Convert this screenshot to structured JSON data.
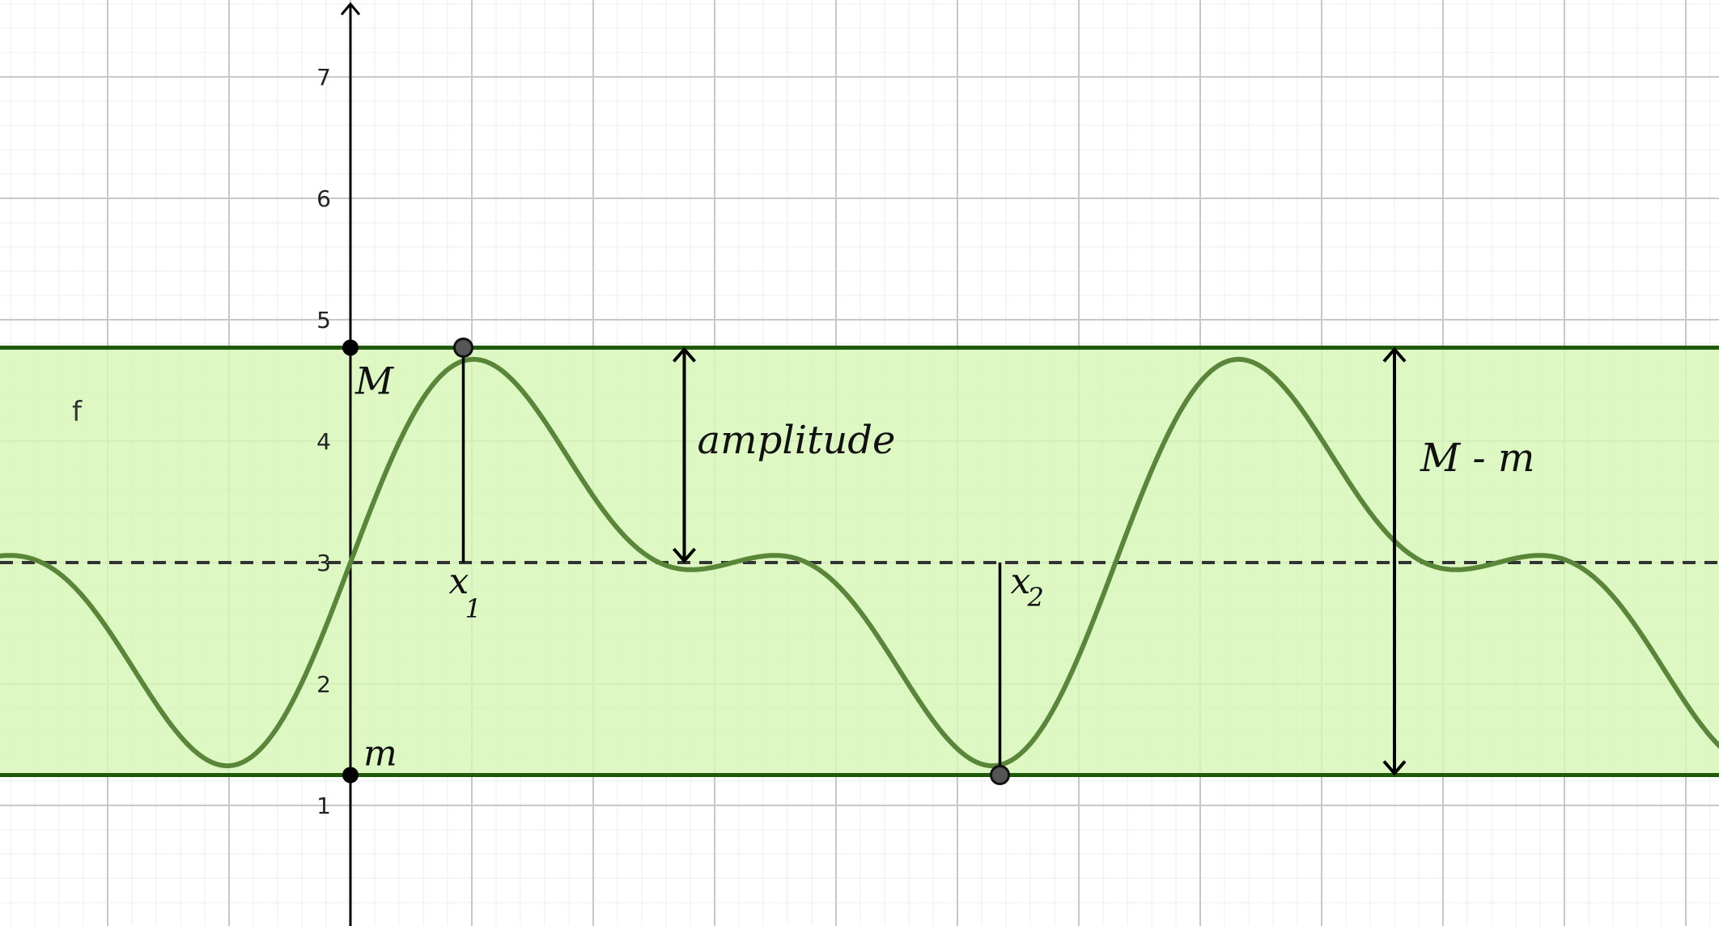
{
  "chart_data": {
    "type": "line",
    "description_free": true,
    "xlim": [
      -2.9,
      11.3
    ],
    "ylim": [
      0,
      7.6
    ],
    "y_ticks": [
      1,
      2,
      3,
      4,
      5,
      6,
      7
    ],
    "y_tick_labels": [
      "1",
      "2",
      "3",
      "4",
      "5",
      "6",
      "7"
    ],
    "grid": true,
    "minor_grid": true,
    "function_label": "f",
    "function": {
      "form": "d + a1*sin(w*x) + a2*sin(2*w*x)",
      "d": 3.0,
      "a1": 1.2,
      "a2": 0.73,
      "w": 0.997,
      "x_range": [
        -2.9,
        11.3
      ]
    },
    "max_value": 4.77,
    "min_value": 1.25,
    "midline": 3.0,
    "points": [
      {
        "name": "M",
        "x": 0,
        "y": 4.77
      },
      {
        "name": "m",
        "x": 0,
        "y": 1.25
      },
      {
        "name": "x1",
        "x": 0.93,
        "y": 4.77
      },
      {
        "name": "x2",
        "x": 5.35,
        "y": 1.25
      }
    ],
    "labels": {
      "M": "M",
      "m": "m",
      "x1_base": "x",
      "x1_sub": "1",
      "x2_base": "x",
      "x2_sub": "2",
      "amplitude": "amplitude",
      "range": "M - m"
    },
    "amplitude_arrow": {
      "x": 2.75,
      "from": 3.0,
      "to": 4.77
    },
    "range_arrow": {
      "x": 8.6,
      "from": 1.25,
      "to": 4.77
    },
    "colors": {
      "band_fill": "#d6f7b4",
      "band_border": "#1e5a0a",
      "curve": "#5a8639",
      "midline": "#333333",
      "axis": "#000000",
      "grid_major": "#c8c8c8",
      "grid_minor": "#ececec",
      "point": "#000000",
      "point_open_fill": "#555555"
    }
  }
}
